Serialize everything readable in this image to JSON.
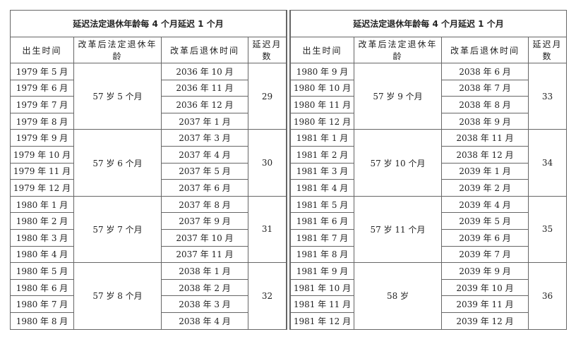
{
  "tables": [
    {
      "title": "延迟法定退休年龄每 4 个月延迟 1 个月",
      "headers": [
        "出生时间",
        "改革后法定退休年龄",
        "改革后退休时间",
        "延迟月数"
      ],
      "groups": [
        {
          "births": [
            "1979 年 5 月",
            "1979 年 6 月",
            "1979 年 7 月",
            "1979 年 8 月"
          ],
          "age": "57 岁 5 个月",
          "retire": [
            "2036 年 10 月",
            "2036 年 11 月",
            "2036 年 12 月",
            "2037 年 1 月"
          ],
          "delay": "29"
        },
        {
          "births": [
            "1979 年 9 月",
            "1979 年 10 月",
            "1979 年 11 月",
            "1979 年 12 月"
          ],
          "age": "57 岁 6 个月",
          "retire": [
            "2037 年 3 月",
            "2037 年 4 月",
            "2037 年 5 月",
            "2037 年 6 月"
          ],
          "delay": "30"
        },
        {
          "births": [
            "1980 年 1 月",
            "1980 年 2 月",
            "1980 年 3 月",
            "1980 年 4 月"
          ],
          "age": "57 岁 7 个月",
          "retire": [
            "2037 年 8 月",
            "2037 年 9 月",
            "2037 年 10 月",
            "2037 年 11 月"
          ],
          "delay": "31"
        },
        {
          "births": [
            "1980 年 5 月",
            "1980 年 6 月",
            "1980 年 7 月",
            "1980 年 8 月"
          ],
          "age": "57 岁 8 个月",
          "retire": [
            "2038 年 1 月",
            "2038 年 2 月",
            "2038 年 3 月",
            "2038 年 4 月"
          ],
          "delay": "32"
        }
      ]
    },
    {
      "title": "延迟法定退休年龄每 4 个月延迟 1 个月",
      "headers": [
        "出生时间",
        "改革后法定退休年龄",
        "改革后退休时间",
        "延迟月数"
      ],
      "groups": [
        {
          "births": [
            "1980 年 9 月",
            "1980 年 10 月",
            "1980 年 11 月",
            "1980 年 12 月"
          ],
          "age": "57 岁 9 个月",
          "retire": [
            "2038 年 6 月",
            "2038 年 7 月",
            "2038 年 8 月",
            "2038 年 9 月"
          ],
          "delay": "33"
        },
        {
          "births": [
            "1981 年 1 月",
            "1981 年 2 月",
            "1981 年 3 月",
            "1981 年 4 月"
          ],
          "age": "57 岁 10 个月",
          "retire": [
            "2038 年 11 月",
            "2038 年 12 月",
            "2039 年 1 月",
            "2039 年 2 月"
          ],
          "delay": "34"
        },
        {
          "births": [
            "1981 年 5 月",
            "1981 年 6 月",
            "1981 年 7 月",
            "1981 年 8 月"
          ],
          "age": "57 岁 11 个月",
          "retire": [
            "2039 年 4 月",
            "2039 年 5 月",
            "2039 年 6 月",
            "2039 年 7 月"
          ],
          "delay": "35"
        },
        {
          "births": [
            "1981 年 9 月",
            "1981 年 10 月",
            "1981 年 11 月",
            "1981 年 12 月"
          ],
          "age": "58 岁",
          "retire": [
            "2039 年 9 月",
            "2039 年 10 月",
            "2039 年 11 月",
            "2039 年 12 月"
          ],
          "delay": "36"
        }
      ]
    }
  ]
}
